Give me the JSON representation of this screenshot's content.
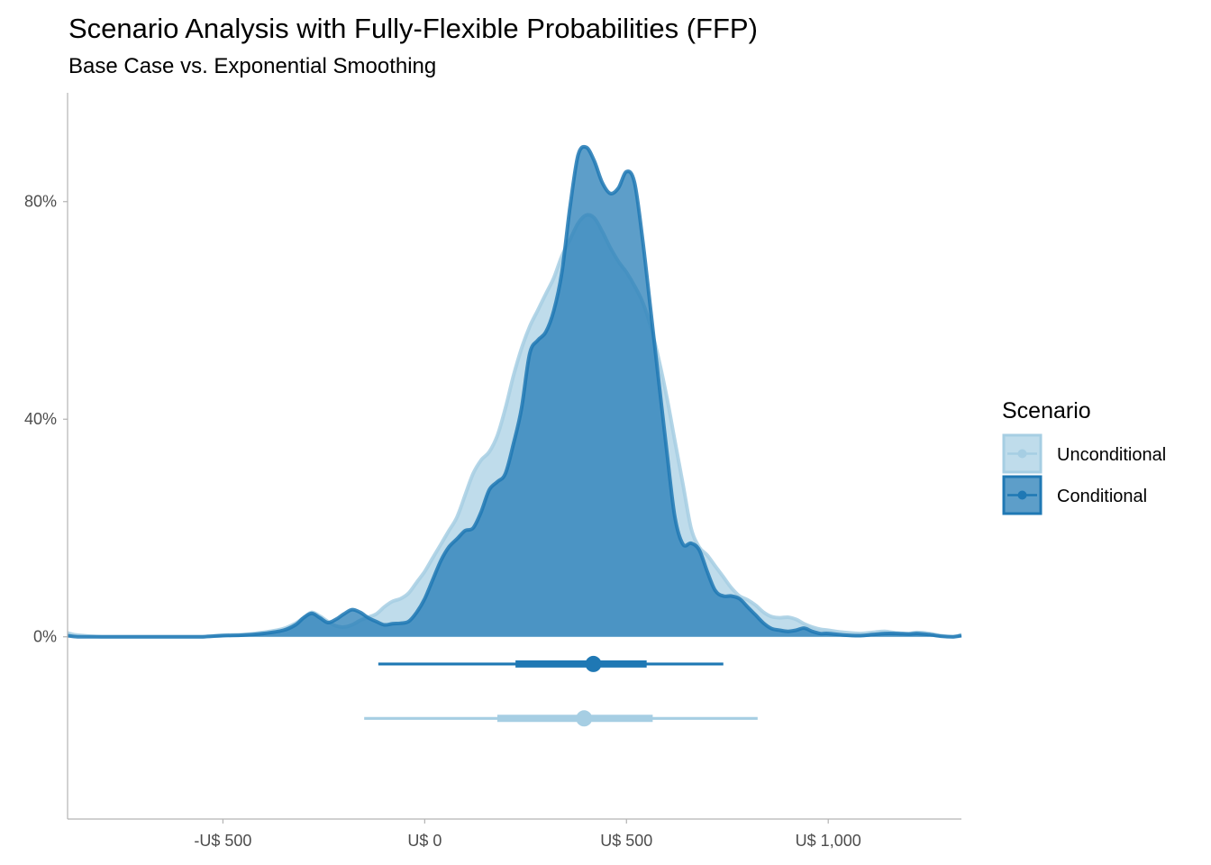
{
  "chart_data": {
    "type": "area",
    "title": "Scenario Analysis with Fully-Flexible Probabilities (FFP)",
    "subtitle": "Base Case vs. Exponential Smoothing",
    "xlabel": "",
    "ylabel": "",
    "x_ticks": [
      -500,
      0,
      500,
      1000
    ],
    "x_tick_labels": [
      "-U$ 500",
      "U$ 0",
      "U$ 500",
      "U$ 1,000"
    ],
    "y_ticks": [
      0,
      0.4,
      0.8
    ],
    "y_tick_labels": [
      "0%",
      "40%",
      "80%"
    ],
    "xlim": [
      -885,
      1330
    ],
    "ylim": [
      -0.335,
      1.0
    ],
    "grid": false,
    "legend": {
      "title": "Scenario",
      "position": "right"
    },
    "series": [
      {
        "name": "Unconditional",
        "color": "#a6cee3",
        "x": [
          -885,
          -860,
          -800,
          -700,
          -600,
          -550,
          -500,
          -450,
          -400,
          -350,
          -320,
          -300,
          -280,
          -260,
          -240,
          -220,
          -200,
          -180,
          -160,
          -140,
          -120,
          -100,
          -80,
          -60,
          -40,
          -20,
          0,
          20,
          40,
          60,
          80,
          100,
          120,
          140,
          160,
          180,
          200,
          220,
          240,
          260,
          280,
          300,
          320,
          340,
          360,
          380,
          400,
          420,
          440,
          460,
          480,
          500,
          520,
          540,
          560,
          580,
          600,
          620,
          640,
          660,
          680,
          700,
          720,
          740,
          760,
          780,
          800,
          820,
          840,
          860,
          880,
          900,
          920,
          940,
          960,
          980,
          1000,
          1040,
          1080,
          1110,
          1140,
          1170,
          1200,
          1220,
          1250,
          1280,
          1310,
          1330
        ],
        "y": [
          0.007,
          0.003,
          0.0,
          0.0,
          0.0,
          0.0,
          0.003,
          0.004,
          0.008,
          0.015,
          0.025,
          0.035,
          0.045,
          0.038,
          0.028,
          0.02,
          0.018,
          0.022,
          0.03,
          0.036,
          0.042,
          0.055,
          0.065,
          0.07,
          0.08,
          0.1,
          0.12,
          0.145,
          0.17,
          0.195,
          0.22,
          0.26,
          0.3,
          0.325,
          0.34,
          0.37,
          0.42,
          0.48,
          0.53,
          0.57,
          0.6,
          0.63,
          0.66,
          0.7,
          0.73,
          0.76,
          0.775,
          0.77,
          0.745,
          0.715,
          0.69,
          0.67,
          0.645,
          0.615,
          0.57,
          0.51,
          0.44,
          0.36,
          0.28,
          0.2,
          0.165,
          0.15,
          0.13,
          0.11,
          0.09,
          0.075,
          0.068,
          0.058,
          0.045,
          0.037,
          0.035,
          0.036,
          0.032,
          0.024,
          0.018,
          0.014,
          0.012,
          0.008,
          0.006,
          0.008,
          0.01,
          0.007,
          0.006,
          0.008,
          0.006,
          0.002,
          0.0,
          0.004
        ]
      },
      {
        "name": "Conditional",
        "color": "#1f78b4",
        "x": [
          -885,
          -860,
          -800,
          -700,
          -600,
          -550,
          -500,
          -450,
          -400,
          -350,
          -320,
          -300,
          -280,
          -260,
          -240,
          -220,
          -200,
          -180,
          -160,
          -140,
          -120,
          -100,
          -80,
          -60,
          -40,
          -20,
          0,
          20,
          40,
          60,
          80,
          100,
          120,
          140,
          160,
          180,
          200,
          220,
          240,
          260,
          280,
          300,
          320,
          340,
          360,
          380,
          400,
          420,
          440,
          460,
          480,
          500,
          520,
          540,
          560,
          580,
          600,
          620,
          640,
          660,
          680,
          700,
          720,
          740,
          760,
          780,
          800,
          820,
          840,
          860,
          880,
          900,
          920,
          940,
          960,
          980,
          1000,
          1040,
          1080,
          1110,
          1140,
          1170,
          1200,
          1220,
          1250,
          1280,
          1310,
          1330
        ],
        "y": [
          0.002,
          0.0,
          0.0,
          0.0,
          0.0,
          0.0,
          0.002,
          0.003,
          0.006,
          0.012,
          0.022,
          0.035,
          0.043,
          0.035,
          0.026,
          0.032,
          0.042,
          0.05,
          0.045,
          0.035,
          0.028,
          0.022,
          0.024,
          0.025,
          0.028,
          0.045,
          0.07,
          0.105,
          0.14,
          0.165,
          0.18,
          0.195,
          0.2,
          0.23,
          0.27,
          0.285,
          0.3,
          0.355,
          0.42,
          0.52,
          0.545,
          0.56,
          0.6,
          0.67,
          0.79,
          0.885,
          0.9,
          0.875,
          0.835,
          0.815,
          0.825,
          0.855,
          0.835,
          0.73,
          0.6,
          0.47,
          0.34,
          0.22,
          0.17,
          0.172,
          0.16,
          0.12,
          0.085,
          0.075,
          0.075,
          0.07,
          0.055,
          0.04,
          0.025,
          0.015,
          0.012,
          0.01,
          0.012,
          0.016,
          0.01,
          0.006,
          0.006,
          0.003,
          0.002,
          0.004,
          0.006,
          0.006,
          0.005,
          0.006,
          0.004,
          0.001,
          0.0,
          0.002
        ]
      }
    ],
    "intervals": [
      {
        "name": "Conditional",
        "color": "#1f78b4",
        "y": -0.05,
        "point": 418,
        "inner": [
          225,
          550
        ],
        "outer": [
          -115,
          740
        ]
      },
      {
        "name": "Unconditional",
        "color": "#a6cee3",
        "y": -0.15,
        "point": 395,
        "inner": [
          180,
          565
        ],
        "outer": [
          -150,
          825
        ]
      }
    ]
  }
}
